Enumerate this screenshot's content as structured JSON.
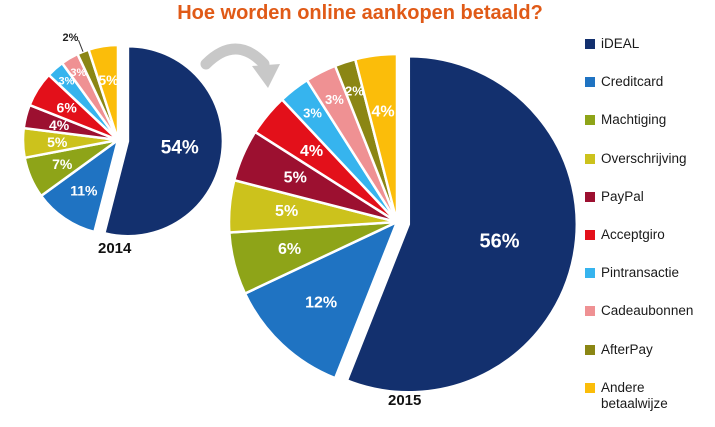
{
  "title": "Hoe worden online aankopen betaald?",
  "chart_data": [
    {
      "type": "pie",
      "label": "2014",
      "slices": [
        {
          "category": "iDEAL",
          "value": 54,
          "label": "54%"
        },
        {
          "category": "Creditcard",
          "value": 11,
          "label": "11%"
        },
        {
          "category": "Machtiging",
          "value": 7,
          "label": "7%"
        },
        {
          "category": "Overschrijving",
          "value": 5,
          "label": "5%"
        },
        {
          "category": "PayPal",
          "value": 4,
          "label": "4%"
        },
        {
          "category": "Acceptgiro",
          "value": 6,
          "label": "6%"
        },
        {
          "category": "Pintransactie",
          "value": 3,
          "label": "3%"
        },
        {
          "category": "Cadeaubonnen",
          "value": 3,
          "label": "3%"
        },
        {
          "category": "AfterPay",
          "value": 2,
          "label": "2%"
        },
        {
          "category": "Andere betaalwijze",
          "value": 5,
          "label": "5%"
        }
      ]
    },
    {
      "type": "pie",
      "label": "2015",
      "slices": [
        {
          "category": "iDEAL",
          "value": 56,
          "label": "56%"
        },
        {
          "category": "Creditcard",
          "value": 12,
          "label": "12%"
        },
        {
          "category": "Machtiging",
          "value": 6,
          "label": "6%"
        },
        {
          "category": "Overschrijving",
          "value": 5,
          "label": "5%"
        },
        {
          "category": "PayPal",
          "value": 5,
          "label": "5%"
        },
        {
          "category": "Acceptgiro",
          "value": 4,
          "label": "4%"
        },
        {
          "category": "Pintransactie",
          "value": 3,
          "label": "3%"
        },
        {
          "category": "Cadeaubonnen",
          "value": 3,
          "label": "3%"
        },
        {
          "category": "AfterPay",
          "value": 2,
          "label": "2%"
        },
        {
          "category": "Andere betaalwijze",
          "value": 4,
          "label": "4%"
        }
      ]
    }
  ],
  "legend": [
    {
      "label": "iDEAL",
      "color": "#13306e"
    },
    {
      "label": "Creditcard",
      "color": "#1f73c2"
    },
    {
      "label": "Machtiging",
      "color": "#8ea418"
    },
    {
      "label": "Overschrijving",
      "color": "#ccc21c"
    },
    {
      "label": "PayPal",
      "color": "#9c1030"
    },
    {
      "label": "Acceptgiro",
      "color": "#e3101a"
    },
    {
      "label": "Pintransactie",
      "color": "#36b4ee"
    },
    {
      "label": "Cadeaubonnen",
      "color": "#ef9193"
    },
    {
      "label": "AfterPay",
      "color": "#8b8614"
    },
    {
      "label": "Andere betaalwijze",
      "color": "#fbbd0a",
      "lines": [
        "Andere",
        "betaalwijze"
      ]
    }
  ],
  "arrow_color": "#c8c8c8"
}
